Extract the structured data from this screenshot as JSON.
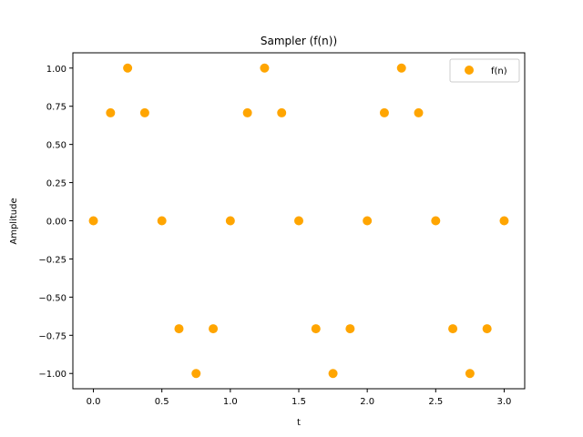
{
  "chart_data": {
    "type": "scatter",
    "title": "Sampler (f(n))",
    "xlabel": "t",
    "ylabel": "Amplitude",
    "xlim": [
      -0.15,
      3.15
    ],
    "ylim": [
      -1.1,
      1.1
    ],
    "xticks": [
      0.0,
      0.5,
      1.0,
      1.5,
      2.0,
      2.5,
      3.0
    ],
    "xtick_labels": [
      "0.0",
      "0.5",
      "1.0",
      "1.5",
      "2.0",
      "2.5",
      "3.0"
    ],
    "yticks": [
      -1.0,
      -0.75,
      -0.5,
      -0.25,
      0.0,
      0.25,
      0.5,
      0.75,
      1.0
    ],
    "ytick_labels": [
      "−1.00",
      "−0.75",
      "−0.50",
      "−0.25",
      "0.00",
      "0.25",
      "0.50",
      "0.75",
      "1.00"
    ],
    "grid": false,
    "legend_position": "top-right",
    "series": [
      {
        "name": "f(n)",
        "color": "#ffa500",
        "x": [
          0.0,
          0.125,
          0.25,
          0.375,
          0.5,
          0.625,
          0.75,
          0.875,
          1.0,
          1.125,
          1.25,
          1.375,
          1.5,
          1.625,
          1.75,
          1.875,
          2.0,
          2.125,
          2.25,
          2.375,
          2.5,
          2.625,
          2.75,
          2.875,
          3.0
        ],
        "y": [
          0.0,
          0.707,
          1.0,
          0.707,
          0.0,
          -0.707,
          -1.0,
          -0.707,
          0.0,
          0.707,
          1.0,
          0.707,
          0.0,
          -0.707,
          -1.0,
          -0.707,
          0.0,
          0.707,
          1.0,
          0.707,
          0.0,
          -0.707,
          -1.0,
          -0.707,
          0.0
        ]
      }
    ]
  }
}
